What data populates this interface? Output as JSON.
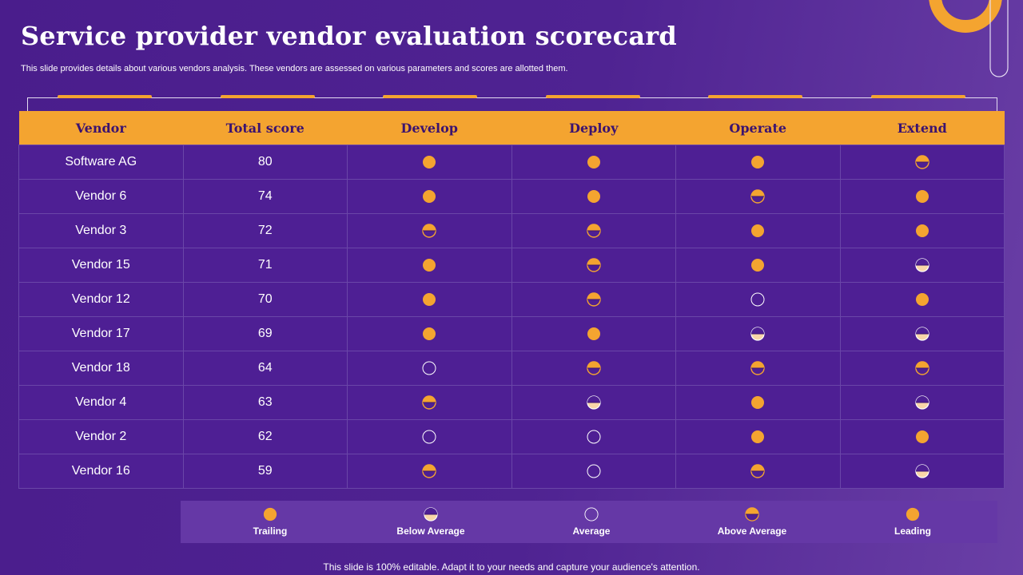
{
  "title": "Service provider vendor evaluation scorecard",
  "subtitle": "This slide provides details about various vendors analysis. These vendors are assessed on various parameters and scores are allotted them.",
  "footer": "This slide is 100% editable. Adapt it to your needs and capture your audience's attention.",
  "colors": {
    "accent": "#f4a430",
    "light_fill": "#f9d6a8",
    "background": "#4e1f94"
  },
  "table": {
    "columns": [
      "Vendor",
      "Total score",
      "Develop",
      "Deploy",
      "Operate",
      "Extend"
    ],
    "rows": [
      {
        "vendor": "Software AG",
        "score": "80",
        "ratings": [
          "trailing",
          "trailing",
          "trailing",
          "above-average"
        ]
      },
      {
        "vendor": "Vendor 6",
        "score": "74",
        "ratings": [
          "trailing",
          "trailing",
          "above-average",
          "trailing"
        ]
      },
      {
        "vendor": "Vendor 3",
        "score": "72",
        "ratings": [
          "above-average",
          "above-average",
          "trailing",
          "trailing"
        ]
      },
      {
        "vendor": "Vendor 15",
        "score": "71",
        "ratings": [
          "trailing",
          "above-average",
          "trailing",
          "below-average"
        ]
      },
      {
        "vendor": "Vendor 12",
        "score": "70",
        "ratings": [
          "trailing",
          "above-average",
          "average",
          "trailing"
        ]
      },
      {
        "vendor": "Vendor 17",
        "score": "69",
        "ratings": [
          "trailing",
          "trailing",
          "below-average",
          "below-average"
        ]
      },
      {
        "vendor": "Vendor 18",
        "score": "64",
        "ratings": [
          "average",
          "above-average",
          "above-average",
          "above-average"
        ]
      },
      {
        "vendor": "Vendor 4",
        "score": "63",
        "ratings": [
          "above-average",
          "below-average",
          "trailing",
          "below-average"
        ]
      },
      {
        "vendor": "Vendor 2",
        "score": "62",
        "ratings": [
          "average",
          "average",
          "trailing",
          "trailing"
        ]
      },
      {
        "vendor": "Vendor 16",
        "score": "59",
        "ratings": [
          "above-average",
          "average",
          "above-average",
          "below-average"
        ]
      }
    ]
  },
  "legend": [
    {
      "key": "trailing",
      "label": "Trailing"
    },
    {
      "key": "below-average",
      "label": "Below Average"
    },
    {
      "key": "average",
      "label": "Average"
    },
    {
      "key": "above-average",
      "label": "Above Average"
    },
    {
      "key": "leading",
      "label": "Leading"
    }
  ]
}
